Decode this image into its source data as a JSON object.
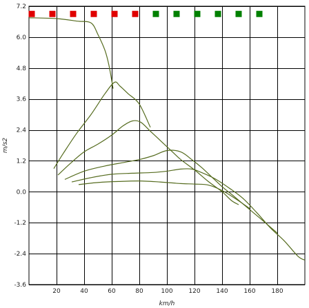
{
  "chart_data": {
    "type": "line",
    "xlabel": "km/h",
    "ylabel": "m/s2",
    "xlim": [
      0,
      200
    ],
    "ylim": [
      -3.6,
      7.2
    ],
    "xticks": [
      20,
      40,
      60,
      80,
      100,
      120,
      140,
      160,
      180
    ],
    "yticks": [
      -3.6,
      -2.4,
      -1.2,
      0.0,
      1.2,
      2.4,
      3.6,
      4.8,
      6.0,
      7.2
    ],
    "ytick_labels": [
      "-3.6",
      "-2.4",
      "-1.2",
      "0.0",
      "1.2",
      "2.4",
      "3.6",
      "4.8",
      "6.0",
      "7.2"
    ],
    "grid": true,
    "line_color": "#556b1e",
    "gear_markers": {
      "x": [
        2,
        17,
        32,
        47,
        62,
        77,
        92,
        107,
        122,
        137,
        152,
        167
      ],
      "y": 6.9,
      "colors": [
        "#e00000",
        "#e00000",
        "#e00000",
        "#e00000",
        "#e00000",
        "#e00000",
        "#008000",
        "#008000",
        "#008000",
        "#008000",
        "#008000",
        "#008000"
      ]
    },
    "series": [
      {
        "points": [
          [
            0,
            6.75
          ],
          [
            20,
            6.72
          ],
          [
            35,
            6.62
          ],
          [
            45,
            6.55
          ],
          [
            50,
            6.1
          ],
          [
            55,
            5.5
          ],
          [
            58,
            4.9
          ],
          [
            61,
            4.0
          ]
        ]
      },
      {
        "points": [
          [
            18,
            0.9
          ],
          [
            25,
            1.5
          ],
          [
            35,
            2.3
          ],
          [
            45,
            3.0
          ],
          [
            55,
            3.8
          ],
          [
            62,
            4.25
          ],
          [
            66,
            4.1
          ],
          [
            72,
            3.8
          ],
          [
            80,
            3.4
          ],
          [
            88,
            2.5
          ]
        ]
      },
      {
        "points": [
          [
            21,
            0.65
          ],
          [
            30,
            1.1
          ],
          [
            40,
            1.55
          ],
          [
            50,
            1.85
          ],
          [
            60,
            2.2
          ],
          [
            68,
            2.55
          ],
          [
            75,
            2.75
          ],
          [
            81,
            2.7
          ],
          [
            88,
            2.35
          ],
          [
            96,
            1.95
          ],
          [
            104,
            1.55
          ],
          [
            110,
            1.25
          ],
          [
            120,
            0.85
          ],
          [
            130,
            0.4
          ],
          [
            140,
            0.0
          ],
          [
            147,
            -0.35
          ],
          [
            152,
            -0.5
          ]
        ]
      },
      {
        "points": [
          [
            26,
            0.48
          ],
          [
            40,
            0.8
          ],
          [
            55,
            1.0
          ],
          [
            70,
            1.15
          ],
          [
            80,
            1.25
          ],
          [
            90,
            1.4
          ],
          [
            100,
            1.6
          ],
          [
            110,
            1.55
          ],
          [
            118,
            1.25
          ],
          [
            125,
            0.95
          ],
          [
            132,
            0.6
          ],
          [
            140,
            0.2
          ],
          [
            148,
            -0.15
          ],
          [
            158,
            -0.6
          ],
          [
            168,
            -1.05
          ],
          [
            180,
            -1.6
          ]
        ]
      },
      {
        "points": [
          [
            31,
            0.38
          ],
          [
            45,
            0.55
          ],
          [
            60,
            0.68
          ],
          [
            75,
            0.72
          ],
          [
            90,
            0.75
          ],
          [
            100,
            0.8
          ],
          [
            110,
            0.88
          ],
          [
            118,
            0.88
          ],
          [
            125,
            0.75
          ],
          [
            135,
            0.5
          ],
          [
            145,
            0.15
          ],
          [
            155,
            -0.25
          ],
          [
            165,
            -0.8
          ],
          [
            175,
            -1.4
          ],
          [
            185,
            -1.9
          ],
          [
            195,
            -2.5
          ],
          [
            200,
            -2.65
          ]
        ]
      },
      {
        "points": [
          [
            36,
            0.28
          ],
          [
            50,
            0.36
          ],
          [
            65,
            0.4
          ],
          [
            80,
            0.42
          ],
          [
            95,
            0.38
          ],
          [
            110,
            0.32
          ],
          [
            120,
            0.3
          ],
          [
            130,
            0.26
          ],
          [
            140,
            0.05
          ],
          [
            150,
            -0.28
          ],
          [
            160,
            -0.65
          ]
        ]
      }
    ]
  }
}
